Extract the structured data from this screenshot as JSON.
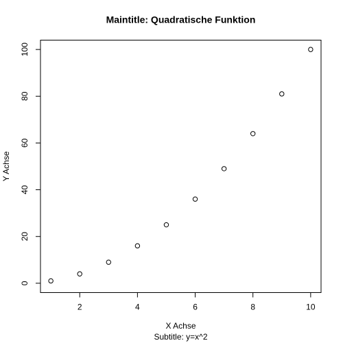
{
  "chart_data": {
    "type": "scatter",
    "title": "Maintitle: Quadratische Funktion",
    "subtitle": "Subtitle: y=x^2",
    "x_label": "X Achse",
    "y_label": "Y Achse",
    "x": [
      1,
      2,
      3,
      4,
      5,
      6,
      7,
      8,
      9,
      10
    ],
    "values": [
      1,
      4,
      9,
      16,
      25,
      36,
      49,
      64,
      81,
      100
    ],
    "color": "#000000",
    "xlim": [
      0.64,
      10.36
    ],
    "xticks": [
      2,
      4,
      6,
      8,
      10
    ],
    "ylim": [
      -4,
      104
    ],
    "yticks": [
      0,
      20,
      40,
      60,
      80,
      100
    ],
    "grid": false
  }
}
